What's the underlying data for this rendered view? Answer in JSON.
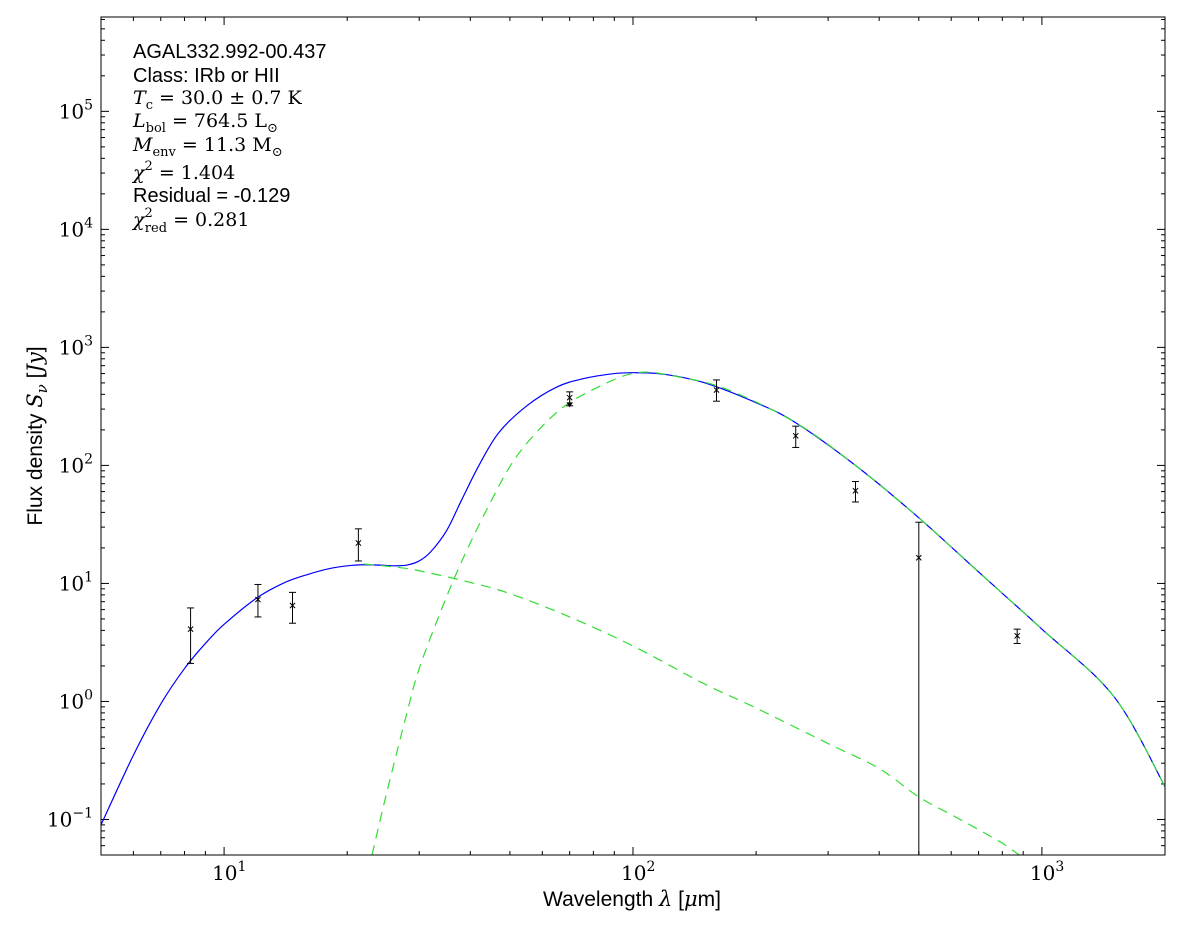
{
  "chart_data": {
    "type": "scatter",
    "xscale": "log",
    "yscale": "log",
    "xlim": [
      5,
      2000
    ],
    "ylim": [
      0.05,
      630000
    ],
    "xlabel": "Wavelength λ [μm]",
    "ylabel": "Flux density S_ν [Jy]",
    "x_ticks": [
      {
        "value": 10,
        "base": "10",
        "exp": "1"
      },
      {
        "value": 100,
        "base": "10",
        "exp": "2"
      },
      {
        "value": 1000,
        "base": "10",
        "exp": "3"
      }
    ],
    "y_ticks": [
      {
        "value": 0.1,
        "base": "10",
        "exp": "−1"
      },
      {
        "value": 1,
        "base": "10",
        "exp": "0"
      },
      {
        "value": 10,
        "base": "10",
        "exp": "1"
      },
      {
        "value": 100,
        "base": "10",
        "exp": "2"
      },
      {
        "value": 1000,
        "base": "10",
        "exp": "3"
      },
      {
        "value": 10000,
        "base": "10",
        "exp": "4"
      },
      {
        "value": 100000,
        "base": "10",
        "exp": "5"
      }
    ],
    "annotations": {
      "source": "AGAL332.992-00.437",
      "class": "Class: IRb or HII",
      "tc": "T_c = 30.0 ± 0.7 K",
      "lbol": "L_bol = 764.5 L_⊙",
      "menv": "M_env = 11.3 M_⊙",
      "chi2": "χ^2 = 1.404",
      "residual": "Residual = -0.129",
      "chi2red": "χ^2_red = 0.281"
    },
    "series": [
      {
        "type": "scatter",
        "marker": "x",
        "color": "#000000",
        "points": [
          {
            "x": 8.28,
            "y": 4.1,
            "ylo": 2.1,
            "yhi": 6.2
          },
          {
            "x": 12.1,
            "y": 7.3,
            "ylo": 5.2,
            "yhi": 9.8
          },
          {
            "x": 14.7,
            "y": 6.5,
            "ylo": 4.6,
            "yhi": 8.4
          },
          {
            "x": 21.3,
            "y": 22,
            "ylo": 15.5,
            "yhi": 29
          },
          {
            "x": 70,
            "y": 375,
            "ylo": 320,
            "yhi": 420,
            "upper_limit": true
          },
          {
            "x": 160,
            "y": 435,
            "ylo": 350,
            "yhi": 530
          },
          {
            "x": 250,
            "y": 178,
            "ylo": 142,
            "yhi": 215
          },
          {
            "x": 350,
            "y": 61,
            "ylo": 49,
            "yhi": 73
          },
          {
            "x": 500,
            "y": 16.5,
            "ylo": 0.01,
            "yhi": 33
          },
          {
            "x": 870,
            "y": 3.6,
            "ylo": 3.1,
            "yhi": 4.1
          }
        ]
      },
      {
        "type": "line",
        "style": "solid",
        "color": "#0000ff",
        "x": [
          5,
          6,
          7,
          8,
          9,
          10,
          12,
          14,
          16,
          18,
          20,
          22,
          24,
          26,
          28,
          30,
          32,
          35,
          38,
          42,
          47,
          55,
          65,
          75,
          90,
          102,
          120,
          150,
          200,
          250,
          350,
          500,
          700,
          1000,
          1500,
          2000
        ],
        "y": [
          0.09,
          0.35,
          0.95,
          1.9,
          3.1,
          4.5,
          7.5,
          10.1,
          11.9,
          13.3,
          14.1,
          14.4,
          14.3,
          14.1,
          14.3,
          15.5,
          18.5,
          28,
          50,
          100,
          190,
          320,
          460,
          540,
          600,
          610,
          590,
          500,
          340,
          230,
          100,
          36,
          12.5,
          4.1,
          1.1,
          0.19
        ]
      },
      {
        "type": "line",
        "style": "dashed",
        "color": "#33dd33",
        "x": [
          23,
          25,
          28,
          30,
          34,
          38,
          44,
          52,
          65,
          80,
          102,
          130,
          170,
          250,
          350,
          500,
          700,
          1000,
          1500,
          2000
        ],
        "y": [
          0.05,
          0.17,
          0.8,
          1.9,
          6,
          15,
          43,
          120,
          280,
          440,
          610,
          560,
          440,
          230,
          100,
          36,
          12.5,
          4.1,
          1.1,
          0.19
        ]
      },
      {
        "type": "line",
        "style": "dashed",
        "color": "#33dd33",
        "x": [
          22,
          26,
          30,
          40,
          50,
          70,
          100,
          150,
          200,
          300,
          400,
          500,
          600,
          700,
          800,
          880
        ],
        "y": [
          14.6,
          13.8,
          12.8,
          10.2,
          8.2,
          5.2,
          2.95,
          1.4,
          0.88,
          0.44,
          0.27,
          0.155,
          0.11,
          0.082,
          0.063,
          0.05
        ]
      }
    ]
  }
}
